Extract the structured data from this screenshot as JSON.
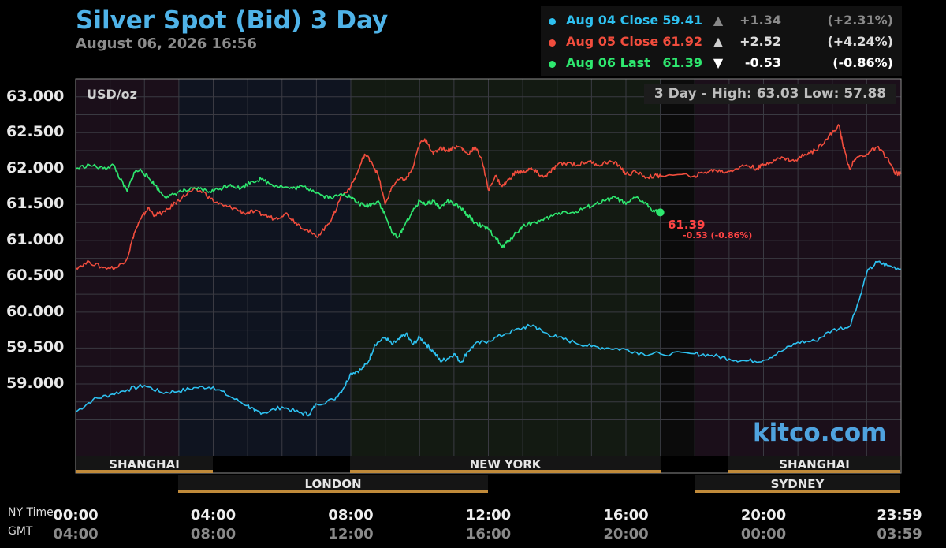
{
  "header": {
    "title": "Silver Spot (Bid) 3 Day",
    "subtitle": "August 06, 2026 16:56"
  },
  "legend": [
    {
      "name": "Aug 04 Close",
      "value": "59.41",
      "arrow": "▲",
      "change": "+1.34",
      "pct": "(+2.31%)",
      "color": "#2ec1f0"
    },
    {
      "name": "Aug 05 Close",
      "value": "61.92",
      "arrow": "▲",
      "change": "+2.52",
      "pct": "(+4.24%)",
      "color": "#f14d3d"
    },
    {
      "name": "Aug 06 Last",
      "value": "61.39",
      "arrow": "▼",
      "change": "-0.53",
      "pct": "(-0.86%)",
      "color": "#2ee86f"
    }
  ],
  "unit_label": "USD/oz",
  "high_low": "3 Day - High: 63.03  Low: 57.88",
  "watermark": "kitco.com",
  "last_marker": {
    "value": "61.39",
    "detail": "-0.53 (-0.86%)"
  },
  "row_labels": {
    "ny": "NY Time",
    "gmt": "GMT"
  },
  "sessions": {
    "row1": [
      "SHANGHAI",
      "NEW YORK",
      "SHANGHAI"
    ],
    "row2": [
      "LONDON",
      "SYDNEY"
    ]
  },
  "chart_data": {
    "type": "line",
    "xlabel": "",
    "ylabel": "USD/oz",
    "ylim": [
      58.0,
      63.25
    ],
    "xlim_hours": [
      0,
      24
    ],
    "y_ticks": [
      "63.000",
      "62.500",
      "62.000",
      "61.500",
      "61.000",
      "60.500",
      "60.000",
      "59.500",
      "59.000"
    ],
    "x_ticks_ny": [
      "00:00",
      "04:00",
      "08:00",
      "12:00",
      "16:00",
      "20:00",
      "23:59"
    ],
    "x_ticks_gmt": [
      "04:00",
      "08:00",
      "12:00",
      "16:00",
      "20:00",
      "00:00",
      "03:59"
    ],
    "grid": true,
    "series": [
      {
        "name": "Aug 04 Close",
        "color": "#2ec1f0",
        "points": [
          [
            0,
            58.61
          ],
          [
            0.5,
            58.78
          ],
          [
            1,
            58.85
          ],
          [
            1.5,
            58.92
          ],
          [
            2,
            58.98
          ],
          [
            2.5,
            58.88
          ],
          [
            3,
            58.9
          ],
          [
            3.5,
            58.95
          ],
          [
            4,
            58.96
          ],
          [
            4.5,
            58.82
          ],
          [
            5,
            58.7
          ],
          [
            5.2,
            58.62
          ],
          [
            5.5,
            58.6
          ],
          [
            6,
            58.68
          ],
          [
            6.5,
            58.6
          ],
          [
            6.8,
            58.58
          ],
          [
            7,
            58.72
          ],
          [
            7.5,
            58.78
          ],
          [
            7.8,
            58.95
          ],
          [
            8,
            59.15
          ],
          [
            8.3,
            59.2
          ],
          [
            8.5,
            59.3
          ],
          [
            8.7,
            59.55
          ],
          [
            9,
            59.65
          ],
          [
            9.2,
            59.55
          ],
          [
            9.4,
            59.62
          ],
          [
            9.6,
            59.7
          ],
          [
            9.8,
            59.55
          ],
          [
            10,
            59.65
          ],
          [
            10.2,
            59.55
          ],
          [
            10.4,
            59.45
          ],
          [
            10.6,
            59.32
          ],
          [
            10.8,
            59.35
          ],
          [
            11,
            59.42
          ],
          [
            11.2,
            59.3
          ],
          [
            11.4,
            59.45
          ],
          [
            11.6,
            59.55
          ],
          [
            12,
            59.6
          ],
          [
            12.5,
            59.7
          ],
          [
            13,
            59.78
          ],
          [
            13.3,
            59.82
          ],
          [
            13.6,
            59.72
          ],
          [
            14,
            59.65
          ],
          [
            14.5,
            59.58
          ],
          [
            15,
            59.52
          ],
          [
            15.5,
            59.5
          ],
          [
            16,
            59.48
          ],
          [
            16.5,
            59.42
          ],
          [
            17,
            59.42
          ],
          [
            18,
            59.42
          ],
          [
            18.5,
            59.4
          ],
          [
            19,
            59.35
          ],
          [
            19.5,
            59.32
          ],
          [
            20,
            59.33
          ],
          [
            20.5,
            59.45
          ],
          [
            21,
            59.58
          ],
          [
            21.5,
            59.6
          ],
          [
            22,
            59.75
          ],
          [
            22.5,
            59.8
          ],
          [
            22.8,
            60.2
          ],
          [
            23,
            60.55
          ],
          [
            23.3,
            60.7
          ],
          [
            23.6,
            60.65
          ],
          [
            24,
            60.6
          ]
        ]
      },
      {
        "name": "Aug 05 Close",
        "color": "#f14d3d",
        "points": [
          [
            0,
            60.62
          ],
          [
            0.4,
            60.7
          ],
          [
            0.8,
            60.62
          ],
          [
            1.2,
            60.62
          ],
          [
            1.5,
            60.75
          ],
          [
            1.7,
            61.1
          ],
          [
            1.9,
            61.3
          ],
          [
            2.1,
            61.45
          ],
          [
            2.3,
            61.35
          ],
          [
            2.6,
            61.4
          ],
          [
            2.9,
            61.52
          ],
          [
            3.1,
            61.6
          ],
          [
            3.4,
            61.7
          ],
          [
            3.7,
            61.68
          ],
          [
            4,
            61.55
          ],
          [
            4.3,
            61.48
          ],
          [
            4.6,
            61.45
          ],
          [
            4.9,
            61.38
          ],
          [
            5.2,
            61.4
          ],
          [
            5.5,
            61.35
          ],
          [
            5.8,
            61.3
          ],
          [
            6.1,
            61.38
          ],
          [
            6.4,
            61.25
          ],
          [
            6.7,
            61.15
          ],
          [
            7,
            61.05
          ],
          [
            7.3,
            61.2
          ],
          [
            7.5,
            61.35
          ],
          [
            7.7,
            61.6
          ],
          [
            8,
            61.75
          ],
          [
            8.2,
            61.95
          ],
          [
            8.4,
            62.2
          ],
          [
            8.6,
            62.1
          ],
          [
            8.8,
            61.9
          ],
          [
            9,
            61.5
          ],
          [
            9.2,
            61.75
          ],
          [
            9.4,
            61.85
          ],
          [
            9.6,
            61.85
          ],
          [
            9.8,
            62.0
          ],
          [
            10,
            62.35
          ],
          [
            10.2,
            62.4
          ],
          [
            10.4,
            62.2
          ],
          [
            10.6,
            62.3
          ],
          [
            10.8,
            62.25
          ],
          [
            11,
            62.3
          ],
          [
            11.2,
            62.3
          ],
          [
            11.4,
            62.2
          ],
          [
            11.6,
            62.3
          ],
          [
            11.8,
            62.15
          ],
          [
            12,
            61.7
          ],
          [
            12.2,
            61.9
          ],
          [
            12.4,
            61.75
          ],
          [
            12.6,
            61.85
          ],
          [
            12.8,
            61.95
          ],
          [
            13,
            61.95
          ],
          [
            13.2,
            62.0
          ],
          [
            13.4,
            61.95
          ],
          [
            13.6,
            61.88
          ],
          [
            13.8,
            61.95
          ],
          [
            14,
            62.05
          ],
          [
            14.3,
            62.08
          ],
          [
            14.6,
            62.05
          ],
          [
            14.9,
            62.1
          ],
          [
            15.2,
            62.05
          ],
          [
            15.5,
            62.1
          ],
          [
            15.8,
            62.05
          ],
          [
            16,
            61.92
          ],
          [
            16.3,
            61.95
          ],
          [
            16.6,
            61.88
          ],
          [
            16.9,
            61.9
          ],
          [
            17,
            61.9
          ],
          [
            18,
            61.9
          ],
          [
            18.3,
            61.95
          ],
          [
            18.6,
            61.98
          ],
          [
            18.9,
            61.95
          ],
          [
            19.2,
            62.0
          ],
          [
            19.5,
            62.05
          ],
          [
            19.8,
            62.0
          ],
          [
            20,
            62.05
          ],
          [
            20.3,
            62.12
          ],
          [
            20.6,
            62.15
          ],
          [
            20.9,
            62.1
          ],
          [
            21.2,
            62.2
          ],
          [
            21.5,
            62.25
          ],
          [
            21.8,
            62.4
          ],
          [
            22,
            62.5
          ],
          [
            22.2,
            62.6
          ],
          [
            22.3,
            62.35
          ],
          [
            22.5,
            62.0
          ],
          [
            22.7,
            62.15
          ],
          [
            23,
            62.2
          ],
          [
            23.3,
            62.3
          ],
          [
            23.6,
            62.15
          ],
          [
            23.8,
            61.95
          ],
          [
            24,
            61.92
          ]
        ]
      },
      {
        "name": "Aug 06 Last",
        "color": "#2ee86f",
        "points": [
          [
            0,
            62.0
          ],
          [
            0.4,
            62.05
          ],
          [
            0.8,
            62.0
          ],
          [
            1.1,
            62.05
          ],
          [
            1.3,
            61.85
          ],
          [
            1.5,
            61.68
          ],
          [
            1.7,
            61.95
          ],
          [
            1.9,
            61.98
          ],
          [
            2.1,
            61.88
          ],
          [
            2.3,
            61.78
          ],
          [
            2.5,
            61.65
          ],
          [
            2.7,
            61.6
          ],
          [
            3,
            61.68
          ],
          [
            3.3,
            61.7
          ],
          [
            3.6,
            61.72
          ],
          [
            3.9,
            61.68
          ],
          [
            4.2,
            61.72
          ],
          [
            4.5,
            61.78
          ],
          [
            4.8,
            61.72
          ],
          [
            5.1,
            61.82
          ],
          [
            5.4,
            61.85
          ],
          [
            5.7,
            61.78
          ],
          [
            6,
            61.75
          ],
          [
            6.3,
            61.72
          ],
          [
            6.6,
            61.75
          ],
          [
            6.9,
            61.7
          ],
          [
            7.2,
            61.62
          ],
          [
            7.5,
            61.6
          ],
          [
            7.8,
            61.65
          ],
          [
            8,
            61.6
          ],
          [
            8.2,
            61.52
          ],
          [
            8.4,
            61.48
          ],
          [
            8.6,
            61.5
          ],
          [
            8.8,
            61.55
          ],
          [
            9,
            61.35
          ],
          [
            9.2,
            61.1
          ],
          [
            9.4,
            61.05
          ],
          [
            9.6,
            61.25
          ],
          [
            9.8,
            61.4
          ],
          [
            10,
            61.55
          ],
          [
            10.2,
            61.5
          ],
          [
            10.4,
            61.55
          ],
          [
            10.6,
            61.45
          ],
          [
            10.8,
            61.55
          ],
          [
            11,
            61.5
          ],
          [
            11.2,
            61.45
          ],
          [
            11.4,
            61.35
          ],
          [
            11.6,
            61.25
          ],
          [
            11.8,
            61.2
          ],
          [
            12,
            61.15
          ],
          [
            12.2,
            61.05
          ],
          [
            12.4,
            60.9
          ],
          [
            12.6,
            61.0
          ],
          [
            12.8,
            61.1
          ],
          [
            13,
            61.2
          ],
          [
            13.3,
            61.25
          ],
          [
            13.6,
            61.28
          ],
          [
            13.9,
            61.35
          ],
          [
            14.2,
            61.4
          ],
          [
            14.5,
            61.38
          ],
          [
            14.8,
            61.45
          ],
          [
            15.1,
            61.5
          ],
          [
            15.4,
            61.55
          ],
          [
            15.7,
            61.6
          ],
          [
            16,
            61.5
          ],
          [
            16.3,
            61.6
          ],
          [
            16.6,
            61.5
          ],
          [
            16.8,
            61.42
          ],
          [
            17,
            61.39
          ]
        ]
      }
    ]
  }
}
